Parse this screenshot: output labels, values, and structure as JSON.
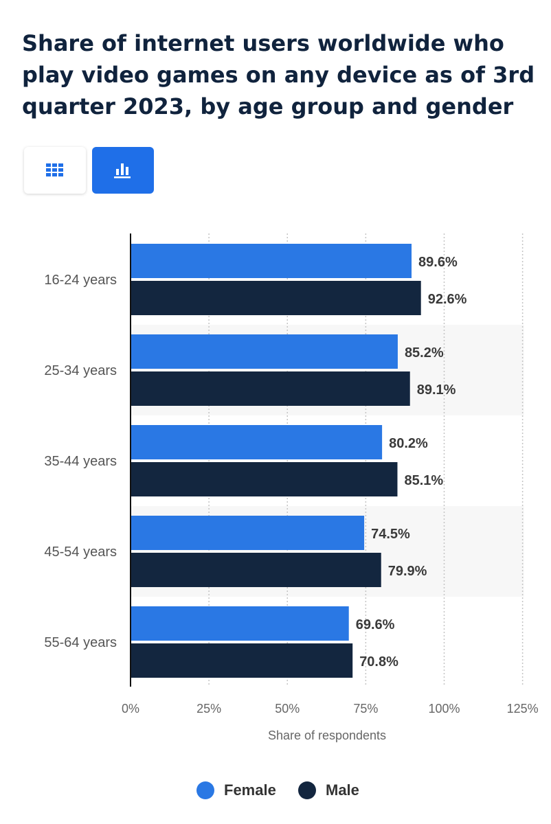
{
  "title": "Share of internet users worldwide who play video games on any device as of 3rd quarter 2023, by age group and gender",
  "view_toggle": {
    "table_icon": "grid-icon",
    "chart_icon": "bar-chart-icon",
    "active": "chart"
  },
  "colors": {
    "female": "#2a78e4",
    "male": "#13263f",
    "accent": "#1f6fe8"
  },
  "chart_data": {
    "type": "bar",
    "orientation": "horizontal",
    "categories": [
      "16-24 years",
      "25-34 years",
      "35-44 years",
      "45-54 years",
      "55-64 years"
    ],
    "series": [
      {
        "name": "Female",
        "values": [
          89.6,
          85.2,
          80.2,
          74.5,
          69.6
        ]
      },
      {
        "name": "Male",
        "values": [
          92.6,
          89.1,
          85.1,
          79.9,
          70.8
        ]
      }
    ],
    "value_labels": {
      "Female": [
        "89.6%",
        "85.2%",
        "80.2%",
        "74.5%",
        "69.6%"
      ],
      "Male": [
        "92.6%",
        "89.1%",
        "85.1%",
        "79.9%",
        "70.8%"
      ]
    },
    "xlim": [
      0,
      125
    ],
    "xticks": [
      0,
      25,
      50,
      75,
      100,
      125
    ],
    "xtick_labels": [
      "0%",
      "25%",
      "50%",
      "75%",
      "100%",
      "125%"
    ],
    "xlabel": "Share of respondents",
    "ylabel": "",
    "grid": "vertical-dotted",
    "legend_position": "bottom-center"
  },
  "legend": [
    {
      "label": "Female"
    },
    {
      "label": "Male"
    }
  ]
}
